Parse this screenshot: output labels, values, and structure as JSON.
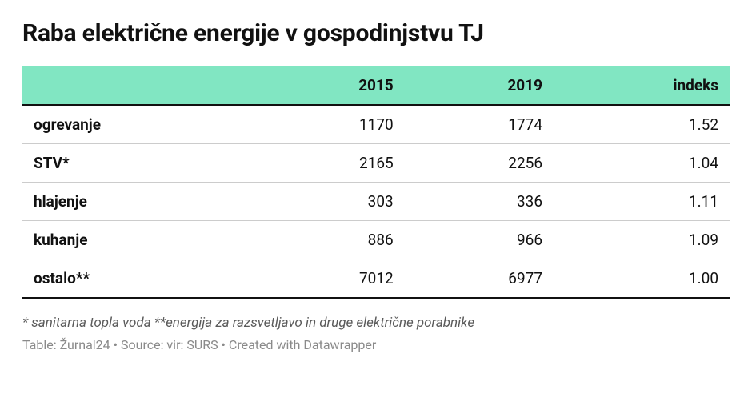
{
  "title": "Raba električne energije v gospodinjstvu TJ",
  "table": {
    "type": "table",
    "header_bg": "#81e6c2",
    "header_border_bottom": "#111111",
    "row_border": "#cccccc",
    "last_row_border": "#111111",
    "text_color": "#111111",
    "columns": [
      {
        "label": "",
        "align": "left"
      },
      {
        "label": "2015",
        "align": "right"
      },
      {
        "label": "2019",
        "align": "right"
      },
      {
        "label": "indeks",
        "align": "right"
      }
    ],
    "rows": [
      {
        "label": "ogrevanje",
        "y2015": "1170",
        "y2019": "1774",
        "index": "1.52"
      },
      {
        "label": "STV*",
        "y2015": "2165",
        "y2019": "2256",
        "index": "1.04"
      },
      {
        "label": "hlajenje",
        "y2015": "303",
        "y2019": "336",
        "index": "1.11"
      },
      {
        "label": "kuhanje",
        "y2015": "886",
        "y2019": "966",
        "index": "1.09"
      },
      {
        "label": "ostalo**",
        "y2015": "7012",
        "y2019": "6977",
        "index": "1.00"
      }
    ]
  },
  "footnote": "* sanitarna topla voda **energija za razsvetljavo in druge električne porabnike",
  "credits": "Table: Žurnal24 • Source: vir: SURS • Created with Datawrapper",
  "style": {
    "background": "#ffffff",
    "title_fontsize": 30,
    "cell_fontsize": 19,
    "footnote_fontsize": 17,
    "credits_fontsize": 16,
    "footnote_color": "#5a5a5a",
    "credits_color": "#8a8a8a"
  }
}
